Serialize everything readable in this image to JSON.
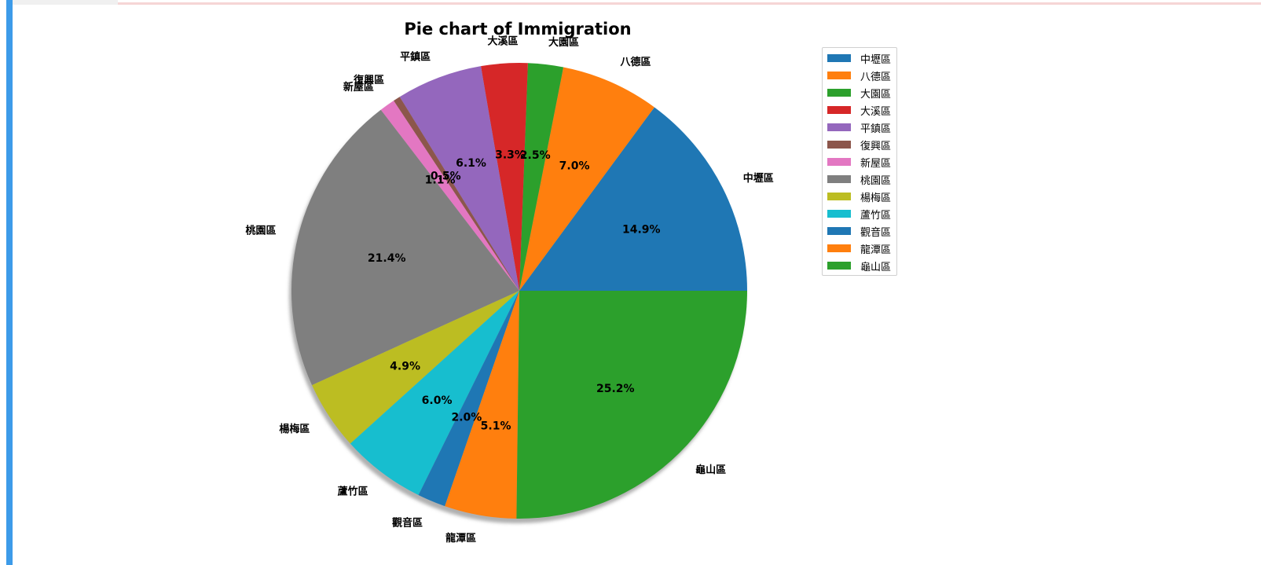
{
  "chart_data": {
    "type": "pie",
    "title": "Pie chart of Immigration",
    "shadow": true,
    "start_angle_deg": 0,
    "direction": "counterclockwise",
    "legend_position": "upper-right",
    "slices": [
      {
        "label": "中壢區",
        "pct": "14.9%",
        "value": 14.9,
        "color": "#1f77b4"
      },
      {
        "label": "八德區",
        "pct": "7.0%",
        "value": 7.0,
        "color": "#ff7f0e"
      },
      {
        "label": "大園區",
        "pct": "2.5%",
        "value": 2.5,
        "color": "#2ca02c"
      },
      {
        "label": "大溪區",
        "pct": "3.3%",
        "value": 3.3,
        "color": "#d62728"
      },
      {
        "label": "平鎮區",
        "pct": "6.1%",
        "value": 6.1,
        "color": "#9467bd"
      },
      {
        "label": "復興區",
        "pct": "0.5%",
        "value": 0.5,
        "color": "#8c564b"
      },
      {
        "label": "新屋區",
        "pct": "1.1%",
        "value": 1.1,
        "color": "#e377c2"
      },
      {
        "label": "桃園區",
        "pct": "21.4%",
        "value": 21.4,
        "color": "#7f7f7f"
      },
      {
        "label": "楊梅區",
        "pct": "4.9%",
        "value": 4.9,
        "color": "#bcbd22"
      },
      {
        "label": "蘆竹區",
        "pct": "6.0%",
        "value": 6.0,
        "color": "#17becf"
      },
      {
        "label": "觀音區",
        "pct": "2.0%",
        "value": 2.0,
        "color": "#1f77b4"
      },
      {
        "label": "龍潭區",
        "pct": "5.1%",
        "value": 5.1,
        "color": "#ff7f0e"
      },
      {
        "label": "龜山區",
        "pct": "25.2%",
        "value": 25.2,
        "color": "#2ca02c"
      }
    ]
  }
}
